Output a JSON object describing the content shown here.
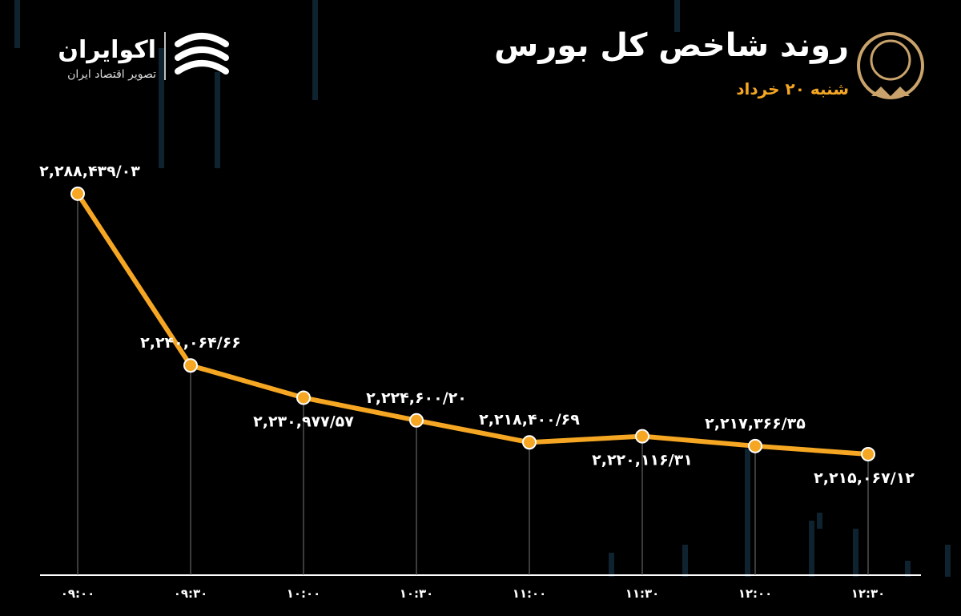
{
  "brand": {
    "name": "اکوایران",
    "tagline": "تصویر اقتصاد ایران"
  },
  "chart_data": {
    "type": "line",
    "title": "روند شاخص کل بورس",
    "subtitle": "شنبه ۲۰ خرداد",
    "categories": [
      "۰۹:۰۰",
      "۰۹:۳۰",
      "۱۰:۰۰",
      "۱۰:۳۰",
      "۱۱:۰۰",
      "۱۱:۳۰",
      "۱۲:۰۰",
      "۱۲:۳۰"
    ],
    "values": [
      2288439.03,
      2240064.66,
      2230977.57,
      2224600.2,
      2218400.69,
      2220116.31,
      2217366.35,
      2215067.12
    ],
    "value_labels": [
      "۲,۲۸۸,۴۳۹/۰۳",
      "۲,۲۴۰,۰۶۴/۶۶",
      "۲,۲۳۰,۹۷۷/۵۷",
      "۲,۲۲۴,۶۰۰/۲۰",
      "۲,۲۱۸,۴۰۰/۶۹",
      "۲,۲۲۰,۱۱۶/۳۱",
      "۲,۲۱۷,۳۶۶/۳۵",
      "۲,۲۱۵,۰۶۷/۱۲"
    ],
    "color": "#f5a623",
    "ylim": [
      2181000,
      2343000
    ]
  }
}
